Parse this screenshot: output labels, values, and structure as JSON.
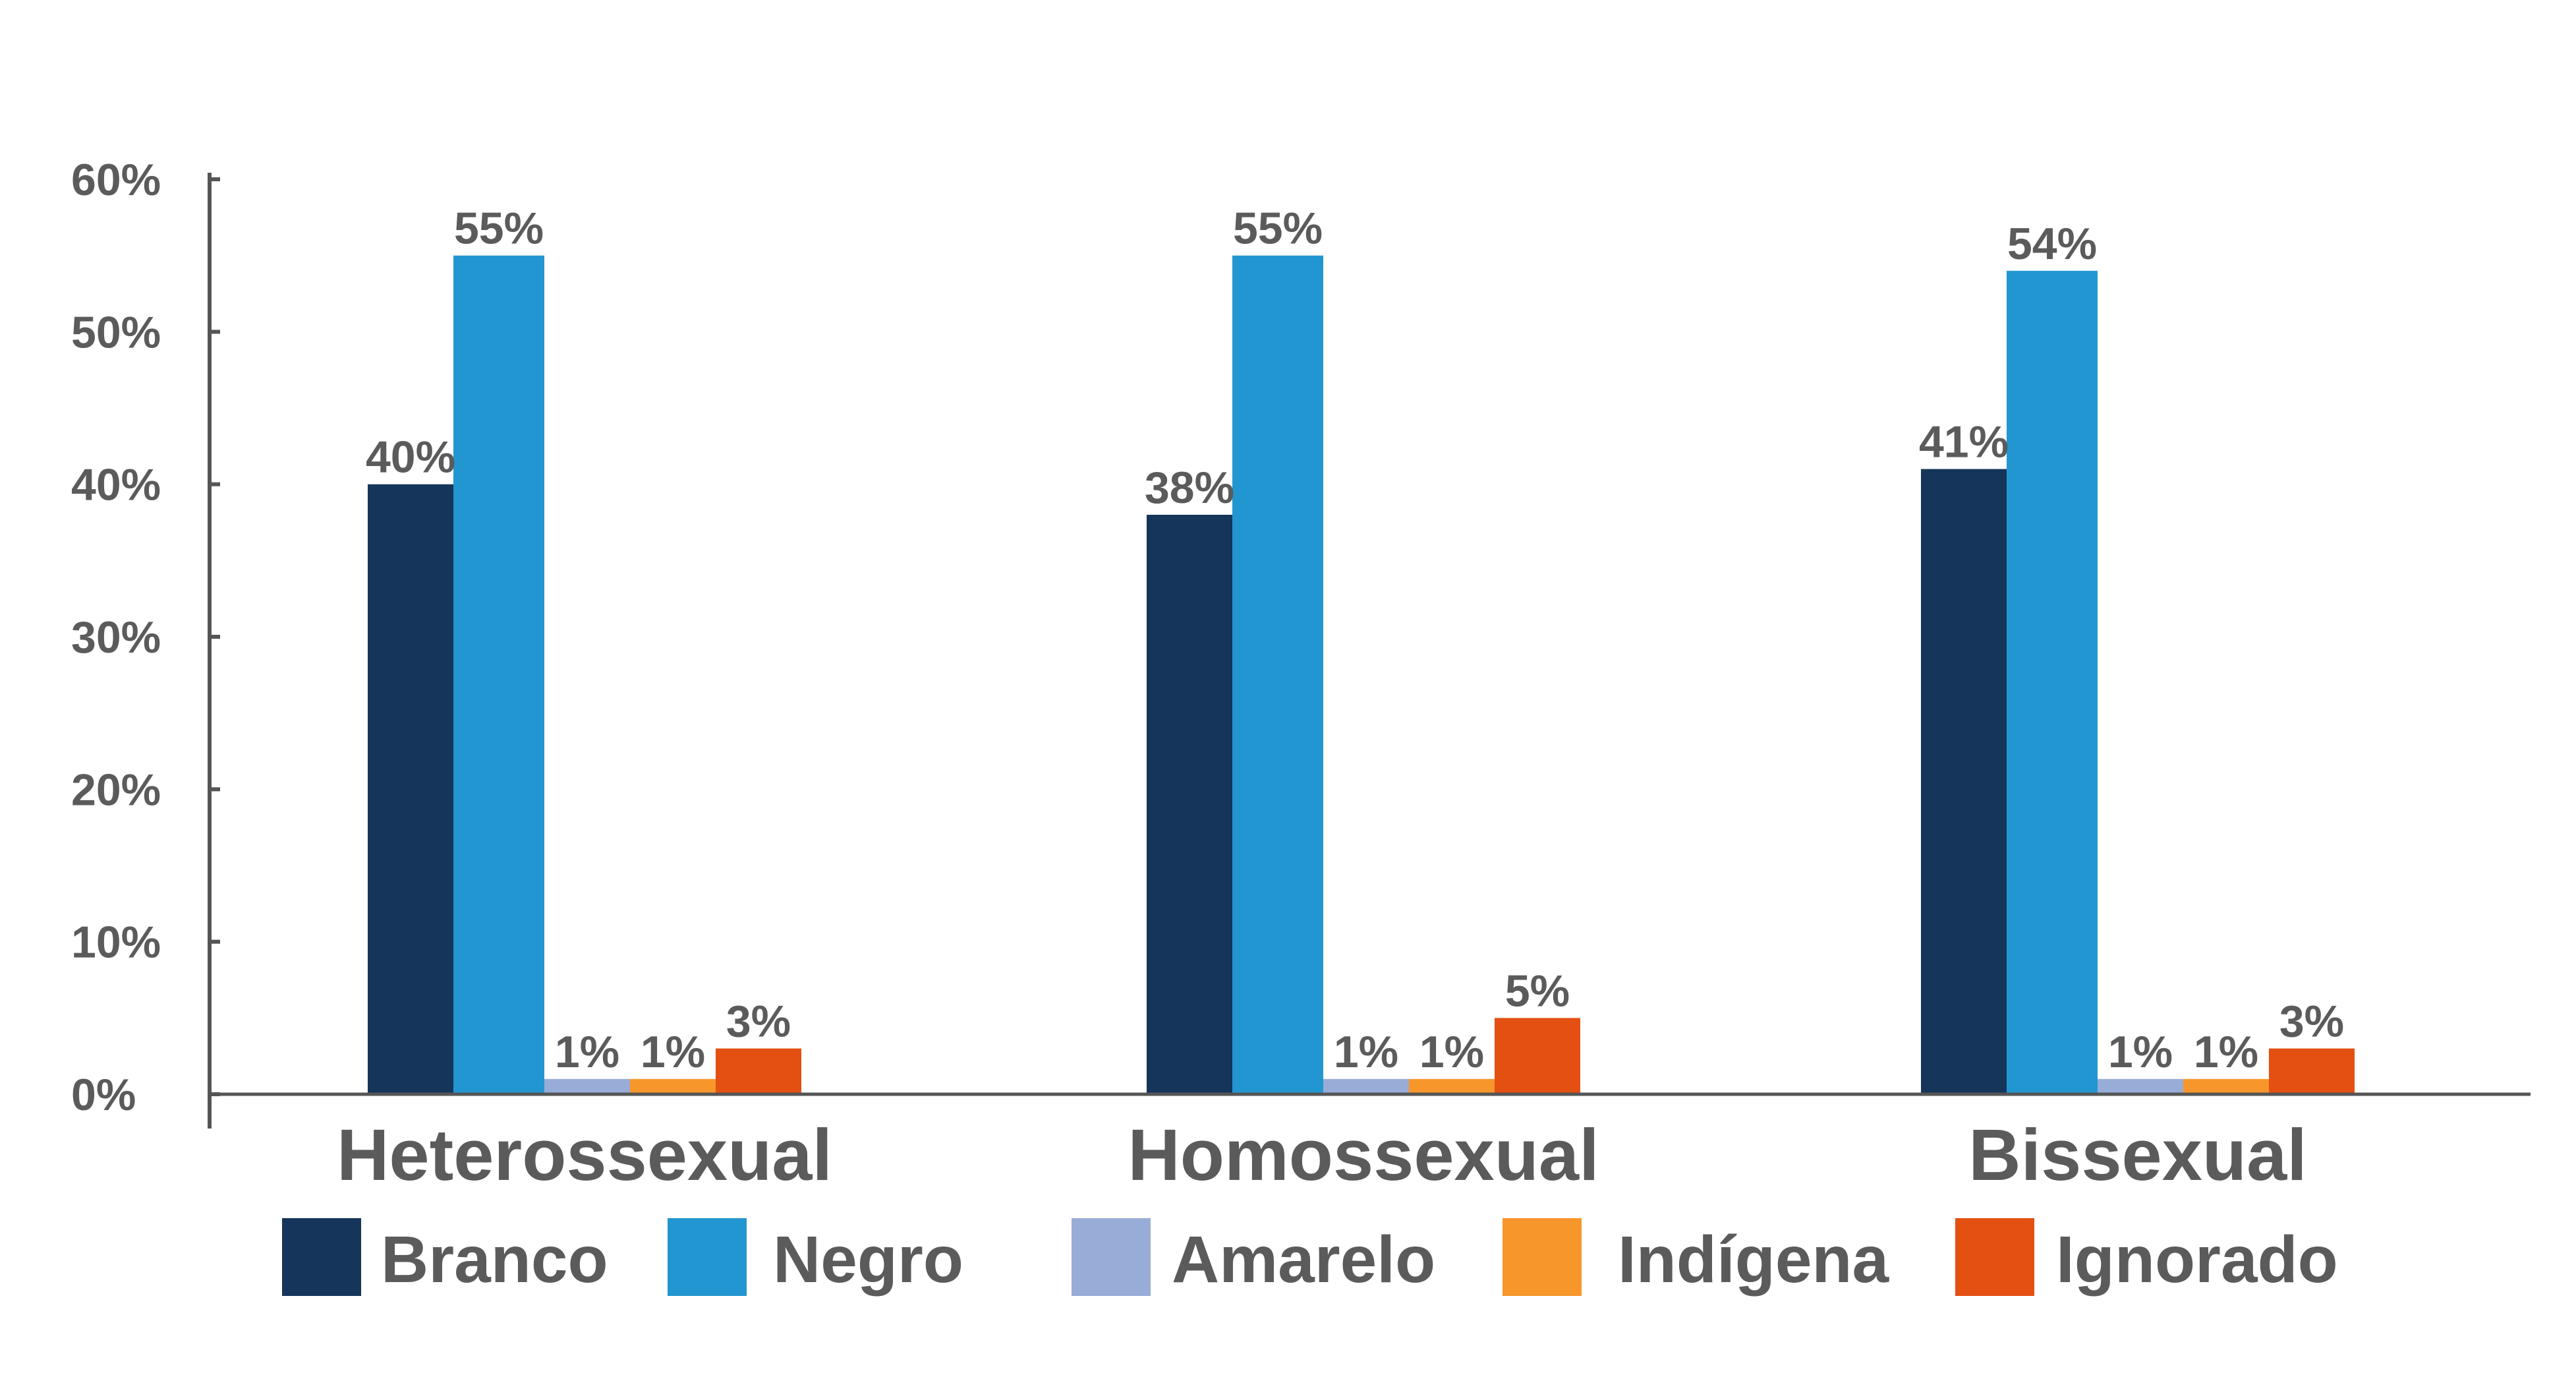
{
  "chart_data": {
    "type": "bar",
    "categories": [
      "Heterossexual",
      "Homossexual",
      "Bissexual"
    ],
    "series": [
      {
        "name": "Branco",
        "color": "#15355a",
        "values": [
          40,
          38,
          41
        ],
        "labels": [
          "40%",
          "38%",
          "41%"
        ]
      },
      {
        "name": "Negro",
        "color": "#2296d0",
        "values": [
          55,
          55,
          54
        ],
        "labels": [
          "55%",
          "55%",
          "54%"
        ]
      },
      {
        "name": "Amarelo",
        "color": "#98acd8",
        "values": [
          1,
          1,
          1
        ],
        "labels": [
          "1%",
          "1%",
          "1%"
        ]
      },
      {
        "name": "Indígena",
        "color": "#f7962b",
        "values": [
          1,
          1,
          1
        ],
        "labels": [
          "1%",
          "1%",
          "1%"
        ]
      },
      {
        "name": "Ignorado",
        "color": "#e44f12",
        "values": [
          3,
          5,
          3
        ],
        "labels": [
          "3%",
          "5%",
          "3%"
        ]
      }
    ],
    "ylim": [
      0,
      60
    ],
    "yticks": [
      "0%",
      "10%",
      "20%",
      "30%",
      "40%",
      "50%",
      "60%"
    ],
    "title": "",
    "xlabel": "",
    "ylabel": "",
    "grid": false,
    "legend_position": "bottom",
    "axis_color": "#555555"
  }
}
